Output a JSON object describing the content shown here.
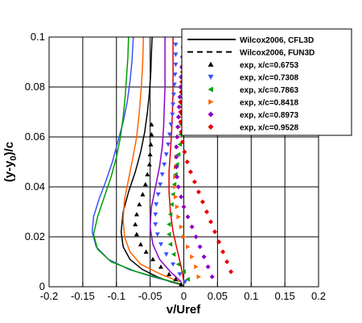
{
  "chart_data": {
    "type": "scatter",
    "xlabel": "v/Uref",
    "ylabel_main": "(y-y",
    "ylabel_sub": "0",
    "ylabel_tail": ")/c",
    "xlim": [
      -0.2,
      0.2
    ],
    "ylim": [
      0,
      0.1
    ],
    "xticks": [
      -0.2,
      -0.15,
      -0.1,
      -0.05,
      0,
      0.05,
      0.1,
      0.15,
      0.2
    ],
    "xtick_labels": [
      "-0.2",
      "-0.15",
      "-0.1",
      "-0.05",
      "0",
      "0.05",
      "0.1",
      "0.15",
      "0.2"
    ],
    "yticks": [
      0,
      0.02,
      0.04,
      0.06,
      0.08,
      0.1
    ],
    "ytick_labels": [
      "0",
      "0.02",
      "0.04",
      "0.06",
      "0.08",
      "0.1"
    ],
    "grid": true,
    "legend_position": "top-right",
    "lines": [
      {
        "name": "Wilcox2006, CFL3D",
        "style": "solid"
      },
      {
        "name": "Wilcox2006, FUN3D",
        "style": "dashed"
      }
    ],
    "series": [
      {
        "name": "exp, x/c=0.6753",
        "marker": "triangle-up",
        "color": "#000000",
        "points": [
          [
            -0.004,
            0.001
          ],
          [
            -0.012,
            0.003
          ],
          [
            -0.022,
            0.005
          ],
          [
            -0.034,
            0.008
          ],
          [
            -0.046,
            0.011
          ],
          [
            -0.056,
            0.014
          ],
          [
            -0.064,
            0.017
          ],
          [
            -0.07,
            0.021
          ],
          [
            -0.072,
            0.025
          ],
          [
            -0.07,
            0.029
          ],
          [
            -0.066,
            0.033
          ],
          [
            -0.061,
            0.037
          ],
          [
            -0.057,
            0.041
          ],
          [
            -0.054,
            0.045
          ],
          [
            -0.051,
            0.049
          ],
          [
            -0.05,
            0.053
          ],
          [
            -0.049,
            0.057
          ],
          [
            -0.048,
            0.061
          ],
          [
            -0.048,
            0.065
          ]
        ],
        "model_points": [
          [
            -0.006,
            0.001
          ],
          [
            -0.02,
            0.002
          ],
          [
            -0.04,
            0.004
          ],
          [
            -0.062,
            0.007
          ],
          [
            -0.08,
            0.011
          ],
          [
            -0.09,
            0.016
          ],
          [
            -0.093,
            0.022
          ],
          [
            -0.09,
            0.03
          ],
          [
            -0.082,
            0.038
          ],
          [
            -0.072,
            0.046
          ],
          [
            -0.064,
            0.054
          ],
          [
            -0.058,
            0.062
          ],
          [
            -0.054,
            0.07
          ],
          [
            -0.051,
            0.078
          ],
          [
            -0.049,
            0.086
          ],
          [
            -0.048,
            0.094
          ],
          [
            -0.047,
            0.1
          ]
        ]
      },
      {
        "name": "exp, x/c=0.7308",
        "marker": "triangle-down",
        "color": "#3c50ff",
        "points": [
          [
            0.002,
            0.002
          ],
          [
            -0.006,
            0.005
          ],
          [
            -0.016,
            0.009
          ],
          [
            -0.026,
            0.013
          ],
          [
            -0.034,
            0.017
          ],
          [
            -0.039,
            0.021
          ],
          [
            -0.042,
            0.025
          ],
          [
            -0.042,
            0.029
          ],
          [
            -0.041,
            0.033
          ],
          [
            -0.038,
            0.037
          ],
          [
            -0.035,
            0.041
          ],
          [
            -0.032,
            0.045
          ],
          [
            -0.029,
            0.049
          ],
          [
            -0.026,
            0.053
          ],
          [
            -0.023,
            0.057
          ],
          [
            -0.021,
            0.061
          ],
          [
            -0.019,
            0.065
          ],
          [
            -0.017,
            0.069
          ],
          [
            -0.016,
            0.073
          ],
          [
            -0.015,
            0.077
          ],
          [
            -0.014,
            0.081
          ],
          [
            -0.013,
            0.085
          ],
          [
            -0.012,
            0.089
          ],
          [
            -0.012,
            0.093
          ],
          [
            -0.012,
            0.097
          ]
        ],
        "model_points": [
          [
            -0.002,
            0.001
          ],
          [
            -0.018,
            0.002
          ],
          [
            -0.046,
            0.004
          ],
          [
            -0.082,
            0.007
          ],
          [
            -0.112,
            0.011
          ],
          [
            -0.13,
            0.016
          ],
          [
            -0.136,
            0.022
          ],
          [
            -0.134,
            0.028
          ],
          [
            -0.126,
            0.035
          ],
          [
            -0.116,
            0.042
          ],
          [
            -0.106,
            0.05
          ],
          [
            -0.098,
            0.058
          ],
          [
            -0.09,
            0.066
          ],
          [
            -0.084,
            0.074
          ],
          [
            -0.08,
            0.082
          ],
          [
            -0.077,
            0.09
          ],
          [
            -0.075,
            0.1
          ]
        ]
      },
      {
        "name": "exp, x/c=0.7863",
        "marker": "triangle-left",
        "color": "#00a000",
        "points": [
          [
            0.006,
            0.003
          ],
          [
            0.0,
            0.006
          ],
          [
            -0.008,
            0.009
          ],
          [
            -0.015,
            0.013
          ],
          [
            -0.02,
            0.017
          ],
          [
            -0.022,
            0.021
          ],
          [
            -0.022,
            0.025
          ],
          [
            -0.02,
            0.029
          ],
          [
            -0.018,
            0.033
          ],
          [
            -0.016,
            0.037
          ],
          [
            -0.014,
            0.041
          ],
          [
            -0.012,
            0.045
          ],
          [
            -0.01,
            0.049
          ],
          [
            -0.008,
            0.053
          ],
          [
            -0.006,
            0.057
          ],
          [
            -0.005,
            0.061
          ],
          [
            -0.004,
            0.065
          ],
          [
            -0.003,
            0.069
          ],
          [
            -0.002,
            0.073
          ],
          [
            -0.002,
            0.077
          ],
          [
            -0.001,
            0.081
          ],
          [
            -0.001,
            0.085
          ],
          [
            0.0,
            0.089
          ],
          [
            0.0,
            0.093
          ],
          [
            0.0,
            0.097
          ]
        ],
        "model_points": [
          [
            -0.004,
            0.001
          ],
          [
            -0.03,
            0.003
          ],
          [
            -0.07,
            0.006
          ],
          [
            -0.108,
            0.01
          ],
          [
            -0.128,
            0.015
          ],
          [
            -0.134,
            0.021
          ],
          [
            -0.128,
            0.028
          ],
          [
            -0.118,
            0.036
          ],
          [
            -0.108,
            0.044
          ],
          [
            -0.1,
            0.052
          ],
          [
            -0.094,
            0.06
          ],
          [
            -0.09,
            0.068
          ],
          [
            -0.087,
            0.076
          ],
          [
            -0.085,
            0.084
          ],
          [
            -0.083,
            0.092
          ],
          [
            -0.082,
            0.1
          ]
        ]
      },
      {
        "name": "exp, x/c=0.8418",
        "marker": "triangle-right",
        "color": "#ff6400",
        "points": [
          [
            0.022,
            0.004
          ],
          [
            0.018,
            0.008
          ],
          [
            0.012,
            0.012
          ],
          [
            0.006,
            0.016
          ],
          [
            0.0,
            0.02
          ],
          [
            -0.004,
            0.024
          ],
          [
            -0.008,
            0.028
          ],
          [
            -0.01,
            0.032
          ],
          [
            -0.012,
            0.036
          ],
          [
            -0.013,
            0.04
          ],
          [
            -0.013,
            0.044
          ],
          [
            -0.012,
            0.048
          ],
          [
            -0.011,
            0.052
          ],
          [
            -0.01,
            0.056
          ],
          [
            -0.008,
            0.06
          ],
          [
            -0.007,
            0.064
          ],
          [
            -0.006,
            0.068
          ],
          [
            -0.005,
            0.072
          ],
          [
            -0.004,
            0.076
          ],
          [
            -0.003,
            0.08
          ],
          [
            -0.002,
            0.084
          ],
          [
            -0.002,
            0.088
          ],
          [
            -0.001,
            0.092
          ],
          [
            -0.001,
            0.096
          ]
        ],
        "model_points": [
          [
            -0.006,
            0.002
          ],
          [
            -0.034,
            0.005
          ],
          [
            -0.064,
            0.009
          ],
          [
            -0.08,
            0.014
          ],
          [
            -0.088,
            0.02
          ],
          [
            -0.09,
            0.027
          ],
          [
            -0.088,
            0.035
          ],
          [
            -0.082,
            0.043
          ],
          [
            -0.076,
            0.051
          ],
          [
            -0.07,
            0.06
          ],
          [
            -0.066,
            0.07
          ],
          [
            -0.063,
            0.08
          ],
          [
            -0.061,
            0.09
          ],
          [
            -0.06,
            0.1
          ]
        ]
      },
      {
        "name": "exp, x/c=0.8973",
        "marker": "diamond",
        "color": "#8c00c8",
        "points": [
          [
            0.042,
            0.004
          ],
          [
            0.036,
            0.008
          ],
          [
            0.03,
            0.012
          ],
          [
            0.024,
            0.016
          ],
          [
            0.018,
            0.02
          ],
          [
            0.012,
            0.024
          ],
          [
            0.006,
            0.028
          ],
          [
            0.0,
            0.032
          ],
          [
            -0.004,
            0.036
          ],
          [
            -0.008,
            0.04
          ],
          [
            -0.01,
            0.044
          ],
          [
            -0.011,
            0.048
          ],
          [
            -0.011,
            0.052
          ],
          [
            -0.011,
            0.056
          ],
          [
            -0.01,
            0.06
          ],
          [
            -0.009,
            0.064
          ],
          [
            -0.008,
            0.068
          ],
          [
            -0.007,
            0.072
          ],
          [
            -0.006,
            0.076
          ],
          [
            -0.005,
            0.08
          ],
          [
            -0.004,
            0.084
          ],
          [
            -0.003,
            0.088
          ],
          [
            -0.002,
            0.092
          ],
          [
            -0.001,
            0.096
          ]
        ],
        "model_points": [
          [
            -0.004,
            0.002
          ],
          [
            -0.02,
            0.006
          ],
          [
            -0.036,
            0.011
          ],
          [
            -0.046,
            0.017
          ],
          [
            -0.05,
            0.024
          ],
          [
            -0.048,
            0.032
          ],
          [
            -0.042,
            0.04
          ],
          [
            -0.036,
            0.048
          ],
          [
            -0.032,
            0.056
          ],
          [
            -0.03,
            0.064
          ],
          [
            -0.029,
            0.072
          ],
          [
            -0.028,
            0.08
          ],
          [
            -0.028,
            0.088
          ],
          [
            -0.028,
            0.1
          ]
        ]
      },
      {
        "name": "exp, x/c=0.9528",
        "marker": "diamond",
        "color": "#e60000",
        "points": [
          [
            0.07,
            0.006
          ],
          [
            0.064,
            0.01
          ],
          [
            0.058,
            0.014
          ],
          [
            0.052,
            0.018
          ],
          [
            0.046,
            0.022
          ],
          [
            0.04,
            0.026
          ],
          [
            0.034,
            0.03
          ],
          [
            0.028,
            0.034
          ],
          [
            0.022,
            0.038
          ],
          [
            0.016,
            0.042
          ],
          [
            0.01,
            0.046
          ],
          [
            0.005,
            0.05
          ],
          [
            0.001,
            0.054
          ],
          [
            -0.002,
            0.058
          ],
          [
            -0.004,
            0.062
          ],
          [
            -0.005,
            0.066
          ],
          [
            -0.005,
            0.07
          ],
          [
            -0.005,
            0.074
          ],
          [
            -0.004,
            0.078
          ],
          [
            -0.003,
            0.082
          ],
          [
            -0.002,
            0.086
          ],
          [
            -0.001,
            0.09
          ],
          [
            0.0,
            0.094
          ],
          [
            0.001,
            0.098
          ]
        ],
        "model_points": [
          [
            0.0,
            0.002
          ],
          [
            -0.004,
            0.008
          ],
          [
            -0.01,
            0.015
          ],
          [
            -0.016,
            0.022
          ],
          [
            -0.02,
            0.03
          ],
          [
            -0.022,
            0.038
          ],
          [
            -0.022,
            0.046
          ],
          [
            -0.02,
            0.054
          ],
          [
            -0.018,
            0.062
          ],
          [
            -0.017,
            0.07
          ],
          [
            -0.016,
            0.078
          ],
          [
            -0.016,
            0.086
          ],
          [
            -0.016,
            0.094
          ],
          [
            -0.016,
            0.1
          ]
        ]
      }
    ]
  }
}
